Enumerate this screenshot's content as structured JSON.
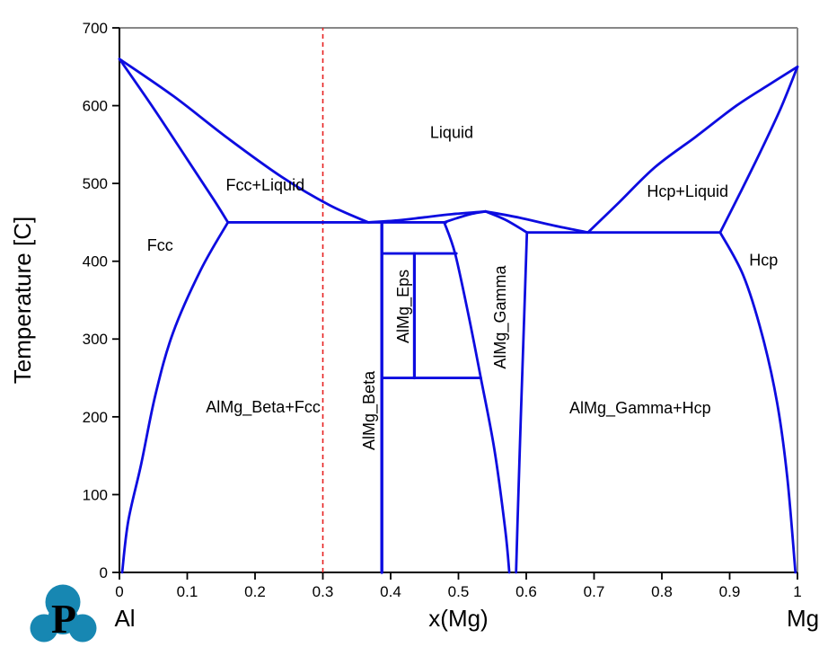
{
  "page": {
    "background": "#ffffff"
  },
  "logo": {
    "name": "pandat-logo",
    "letter": "P",
    "shape": "three-lobed-cloud",
    "color": "#1787b2",
    "letter_color": "#ffffff"
  },
  "chart_data": {
    "type": "line",
    "subtype": "binary-phase-diagram",
    "title": "",
    "xlabel": "x(Mg)",
    "ylabel": "Temperature [C]",
    "x_endpoint_labels": {
      "left": "Al",
      "right": "Mg"
    },
    "xlim": [
      0,
      1
    ],
    "ylim": [
      0,
      700
    ],
    "grid": false,
    "legend": "none",
    "x_ticks": {
      "values": [
        0,
        0.1,
        0.2,
        0.3,
        0.4,
        0.5,
        0.6,
        0.7,
        0.8,
        0.9,
        1
      ],
      "labels": [
        "0",
        "0.1",
        "0.2",
        "0.3",
        "0.4",
        "0.5",
        "0.6",
        "0.7",
        "0.8",
        "0.9",
        "1"
      ]
    },
    "y_ticks": {
      "values": [
        0,
        100,
        200,
        300,
        400,
        500,
        600,
        700
      ],
      "labels": [
        "0",
        "100",
        "200",
        "300",
        "400",
        "500",
        "600",
        "700"
      ]
    },
    "styles": {
      "boundary_color": "#0d0ce0",
      "boundary_width": 2.8,
      "axis_color": "#000000",
      "frame_color": "#878787",
      "guide_color": "#e62020",
      "label_color": "#000000",
      "tick_font_px": 17,
      "region_font_px": 18,
      "title_font_px": 26
    },
    "guide_line": {
      "x": 0.3,
      "T_from": 0,
      "T_to": 700,
      "style": "dashed",
      "color": "#e62020"
    },
    "invariant_temperatures_C": {
      "Al_melting": 660,
      "Mg_melting": 650,
      "eutectic_L_Fcc_Beta": 450,
      "gamma_congruent_max": 464,
      "eutectic_L_Gamma_Hcp": 437,
      "peritectoid_Eps_forms": 410,
      "eutectoid_Eps_decomposes": 250
    },
    "boundaries": [
      {
        "name": "fcc-liquidus",
        "smooth": true,
        "points": [
          [
            0,
            660
          ],
          [
            0.08,
            612
          ],
          [
            0.16,
            558
          ],
          [
            0.24,
            508
          ],
          [
            0.31,
            472
          ],
          [
            0.367,
            450
          ]
        ]
      },
      {
        "name": "fcc-solidus",
        "smooth": true,
        "points": [
          [
            0,
            660
          ],
          [
            0.05,
            597
          ],
          [
            0.1,
            531
          ],
          [
            0.14,
            478
          ],
          [
            0.16,
            450
          ]
        ]
      },
      {
        "name": "fcc-solvus",
        "smooth": true,
        "points": [
          [
            0.16,
            450
          ],
          [
            0.12,
            389
          ],
          [
            0.079,
            308
          ],
          [
            0.053,
            228
          ],
          [
            0.032,
            139
          ],
          [
            0.013,
            66
          ],
          [
            0.004,
            0
          ]
        ]
      },
      {
        "name": "eutectic-tie-line-450",
        "smooth": false,
        "points": [
          [
            0.16,
            450
          ],
          [
            0.482,
            450
          ]
        ]
      },
      {
        "name": "beta-phase-line",
        "smooth": false,
        "width": 3.4,
        "points": [
          [
            0.387,
            450
          ],
          [
            0.387,
            0
          ]
        ]
      },
      {
        "name": "liquidus-beta-to-gamma-max",
        "smooth": true,
        "points": [
          [
            0.367,
            450
          ],
          [
            0.41,
            452.5
          ],
          [
            0.45,
            456.5
          ],
          [
            0.49,
            460.5
          ],
          [
            0.54,
            464
          ]
        ]
      },
      {
        "name": "gamma-solidus-left",
        "smooth": true,
        "points": [
          [
            0.479,
            450
          ],
          [
            0.5,
            456
          ],
          [
            0.52,
            461
          ],
          [
            0.54,
            464
          ]
        ]
      },
      {
        "name": "liquidus-gamma-max-to-eutectic",
        "smooth": true,
        "points": [
          [
            0.54,
            464
          ],
          [
            0.59,
            456
          ],
          [
            0.64,
            446
          ],
          [
            0.691,
            437
          ]
        ]
      },
      {
        "name": "gamma-solidus-right",
        "smooth": true,
        "points": [
          [
            0.54,
            464
          ],
          [
            0.57,
            453
          ],
          [
            0.601,
            437
          ]
        ]
      },
      {
        "name": "gamma-solvus-left",
        "smooth": true,
        "points": [
          [
            0.479,
            450
          ],
          [
            0.495,
            410
          ],
          [
            0.515,
            330
          ],
          [
            0.533,
            250
          ],
          [
            0.553,
            158
          ],
          [
            0.569,
            55
          ],
          [
            0.575,
            0
          ]
        ]
      },
      {
        "name": "gamma-solvus-right",
        "smooth": true,
        "points": [
          [
            0.601,
            437
          ],
          [
            0.597,
            330
          ],
          [
            0.592,
            200
          ],
          [
            0.587,
            60
          ],
          [
            0.585,
            0
          ]
        ]
      },
      {
        "name": "eps-phase-line",
        "smooth": false,
        "width": 3.2,
        "points": [
          [
            0.435,
            410
          ],
          [
            0.435,
            250
          ]
        ]
      },
      {
        "name": "peritectoid-tie-line-410",
        "smooth": false,
        "points": [
          [
            0.387,
            410
          ],
          [
            0.497,
            410
          ]
        ]
      },
      {
        "name": "eutectoid-tie-line-250",
        "smooth": false,
        "points": [
          [
            0.387,
            250
          ],
          [
            0.533,
            250
          ]
        ]
      },
      {
        "name": "eutectic-tie-line-437",
        "smooth": false,
        "points": [
          [
            0.601,
            437
          ],
          [
            0.886,
            437
          ]
        ]
      },
      {
        "name": "hcp-liquidus",
        "smooth": true,
        "points": [
          [
            0.691,
            437
          ],
          [
            0.735,
            474
          ],
          [
            0.79,
            521
          ],
          [
            0.85,
            560
          ],
          [
            0.91,
            600
          ],
          [
            0.96,
            628
          ],
          [
            1,
            650
          ]
        ]
      },
      {
        "name": "hcp-solidus",
        "smooth": true,
        "points": [
          [
            0.886,
            437
          ],
          [
            0.915,
            487
          ],
          [
            0.945,
            540
          ],
          [
            0.975,
            596
          ],
          [
            1,
            650
          ]
        ]
      },
      {
        "name": "hcp-solvus",
        "smooth": true,
        "points": [
          [
            0.886,
            437
          ],
          [
            0.92,
            382
          ],
          [
            0.948,
            305
          ],
          [
            0.97,
            218
          ],
          [
            0.985,
            122
          ],
          [
            0.997,
            0
          ]
        ]
      }
    ],
    "region_labels": [
      {
        "text": "Liquid",
        "x": 0.49,
        "T": 566,
        "rotate": 0
      },
      {
        "text": "Fcc+Liquid",
        "x": 0.215,
        "T": 498,
        "rotate": 0
      },
      {
        "text": "Fcc",
        "x": 0.06,
        "T": 421,
        "rotate": 0
      },
      {
        "text": "Hcp+Liquid",
        "x": 0.838,
        "T": 490,
        "rotate": 0
      },
      {
        "text": "Hcp",
        "x": 0.95,
        "T": 402,
        "rotate": 0
      },
      {
        "text": "AlMg_Beta+Fcc",
        "x": 0.212,
        "T": 213,
        "rotate": 0
      },
      {
        "text": "AlMg_Gamma+Hcp",
        "x": 0.768,
        "T": 212,
        "rotate": 0
      },
      {
        "text": "AlMg_Beta",
        "x": 0.368,
        "T": 208,
        "rotate": -90
      },
      {
        "text": "AlMg_Eps",
        "x": 0.418,
        "T": 342,
        "rotate": -90
      },
      {
        "text": "AlMg_Gamma",
        "x": 0.561,
        "T": 328,
        "rotate": -90
      }
    ]
  }
}
